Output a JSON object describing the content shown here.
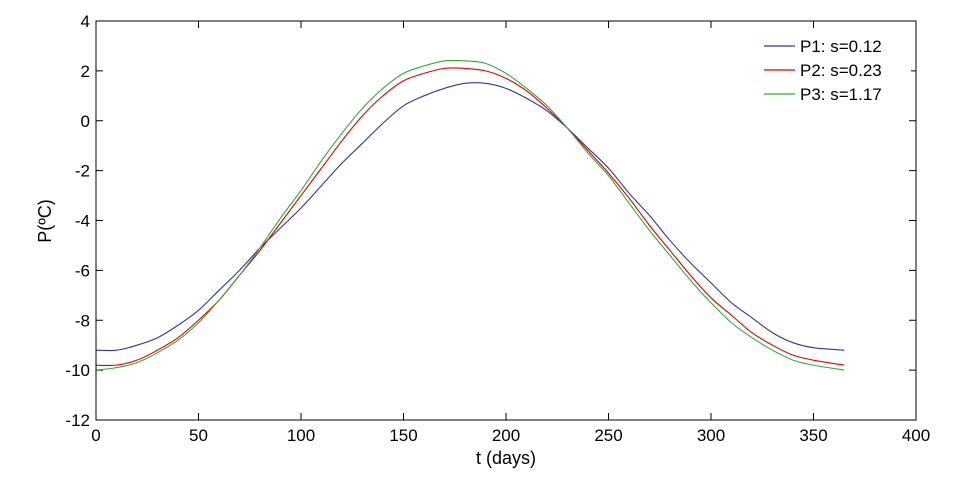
{
  "chart_data": {
    "type": "line",
    "xlabel": "t (days)",
    "ylabel": "P(ºC)",
    "xlim": [
      0,
      400
    ],
    "ylim": [
      -12,
      4
    ],
    "xticks": [
      0,
      50,
      100,
      150,
      200,
      250,
      300,
      350,
      400
    ],
    "yticks": [
      4,
      2,
      0,
      -2,
      -4,
      -6,
      -8,
      -10,
      -12
    ],
    "grid": false,
    "legend_position": "top-right",
    "series": [
      {
        "name": "P1: s=0.12",
        "color": "#3333aa",
        "x": [
          0,
          10,
          20,
          30,
          40,
          50,
          60,
          70,
          80,
          90,
          100,
          110,
          120,
          130,
          140,
          150,
          160,
          170,
          180,
          190,
          200,
          210,
          220,
          230,
          240,
          250,
          260,
          270,
          280,
          290,
          300,
          310,
          320,
          330,
          340,
          350,
          365
        ],
        "values": [
          -9.2,
          -9.2,
          -9.0,
          -8.7,
          -8.2,
          -7.6,
          -6.8,
          -6.0,
          -5.1,
          -4.3,
          -3.5,
          -2.6,
          -1.7,
          -0.9,
          -0.1,
          0.6,
          1.0,
          1.3,
          1.5,
          1.5,
          1.3,
          0.9,
          0.4,
          -0.3,
          -1.1,
          -1.9,
          -2.9,
          -3.8,
          -4.8,
          -5.7,
          -6.5,
          -7.3,
          -7.9,
          -8.5,
          -8.9,
          -9.1,
          -9.2
        ]
      },
      {
        "name": "P2: s=0.23",
        "color": "#dd0000",
        "x": [
          0,
          10,
          20,
          30,
          40,
          50,
          60,
          70,
          80,
          90,
          100,
          110,
          120,
          130,
          140,
          150,
          160,
          170,
          180,
          190,
          200,
          210,
          220,
          230,
          240,
          250,
          260,
          270,
          280,
          290,
          300,
          310,
          320,
          330,
          340,
          350,
          365
        ],
        "values": [
          -9.8,
          -9.8,
          -9.6,
          -9.2,
          -8.7,
          -8.0,
          -7.2,
          -6.2,
          -5.2,
          -4.1,
          -3.0,
          -1.9,
          -0.8,
          0.2,
          1.0,
          1.6,
          1.9,
          2.1,
          2.1,
          2.0,
          1.7,
          1.2,
          0.5,
          -0.3,
          -1.2,
          -2.1,
          -3.1,
          -4.2,
          -5.2,
          -6.2,
          -7.1,
          -7.8,
          -8.5,
          -9.0,
          -9.4,
          -9.6,
          -9.8
        ]
      },
      {
        "name": "P3: s=1.17",
        "color": "#33aa33",
        "x": [
          0,
          10,
          20,
          30,
          40,
          50,
          60,
          70,
          80,
          90,
          100,
          110,
          120,
          130,
          140,
          150,
          160,
          170,
          180,
          190,
          200,
          210,
          220,
          230,
          240,
          250,
          260,
          270,
          280,
          290,
          300,
          310,
          320,
          330,
          340,
          350,
          365
        ],
        "values": [
          -10.0,
          -9.9,
          -9.7,
          -9.3,
          -8.8,
          -8.1,
          -7.2,
          -6.2,
          -5.1,
          -3.9,
          -2.8,
          -1.6,
          -0.5,
          0.5,
          1.3,
          1.9,
          2.2,
          2.4,
          2.4,
          2.3,
          1.9,
          1.3,
          0.6,
          -0.3,
          -1.3,
          -2.2,
          -3.3,
          -4.4,
          -5.4,
          -6.4,
          -7.3,
          -8.1,
          -8.7,
          -9.2,
          -9.6,
          -9.8,
          -10.0
        ]
      }
    ]
  }
}
